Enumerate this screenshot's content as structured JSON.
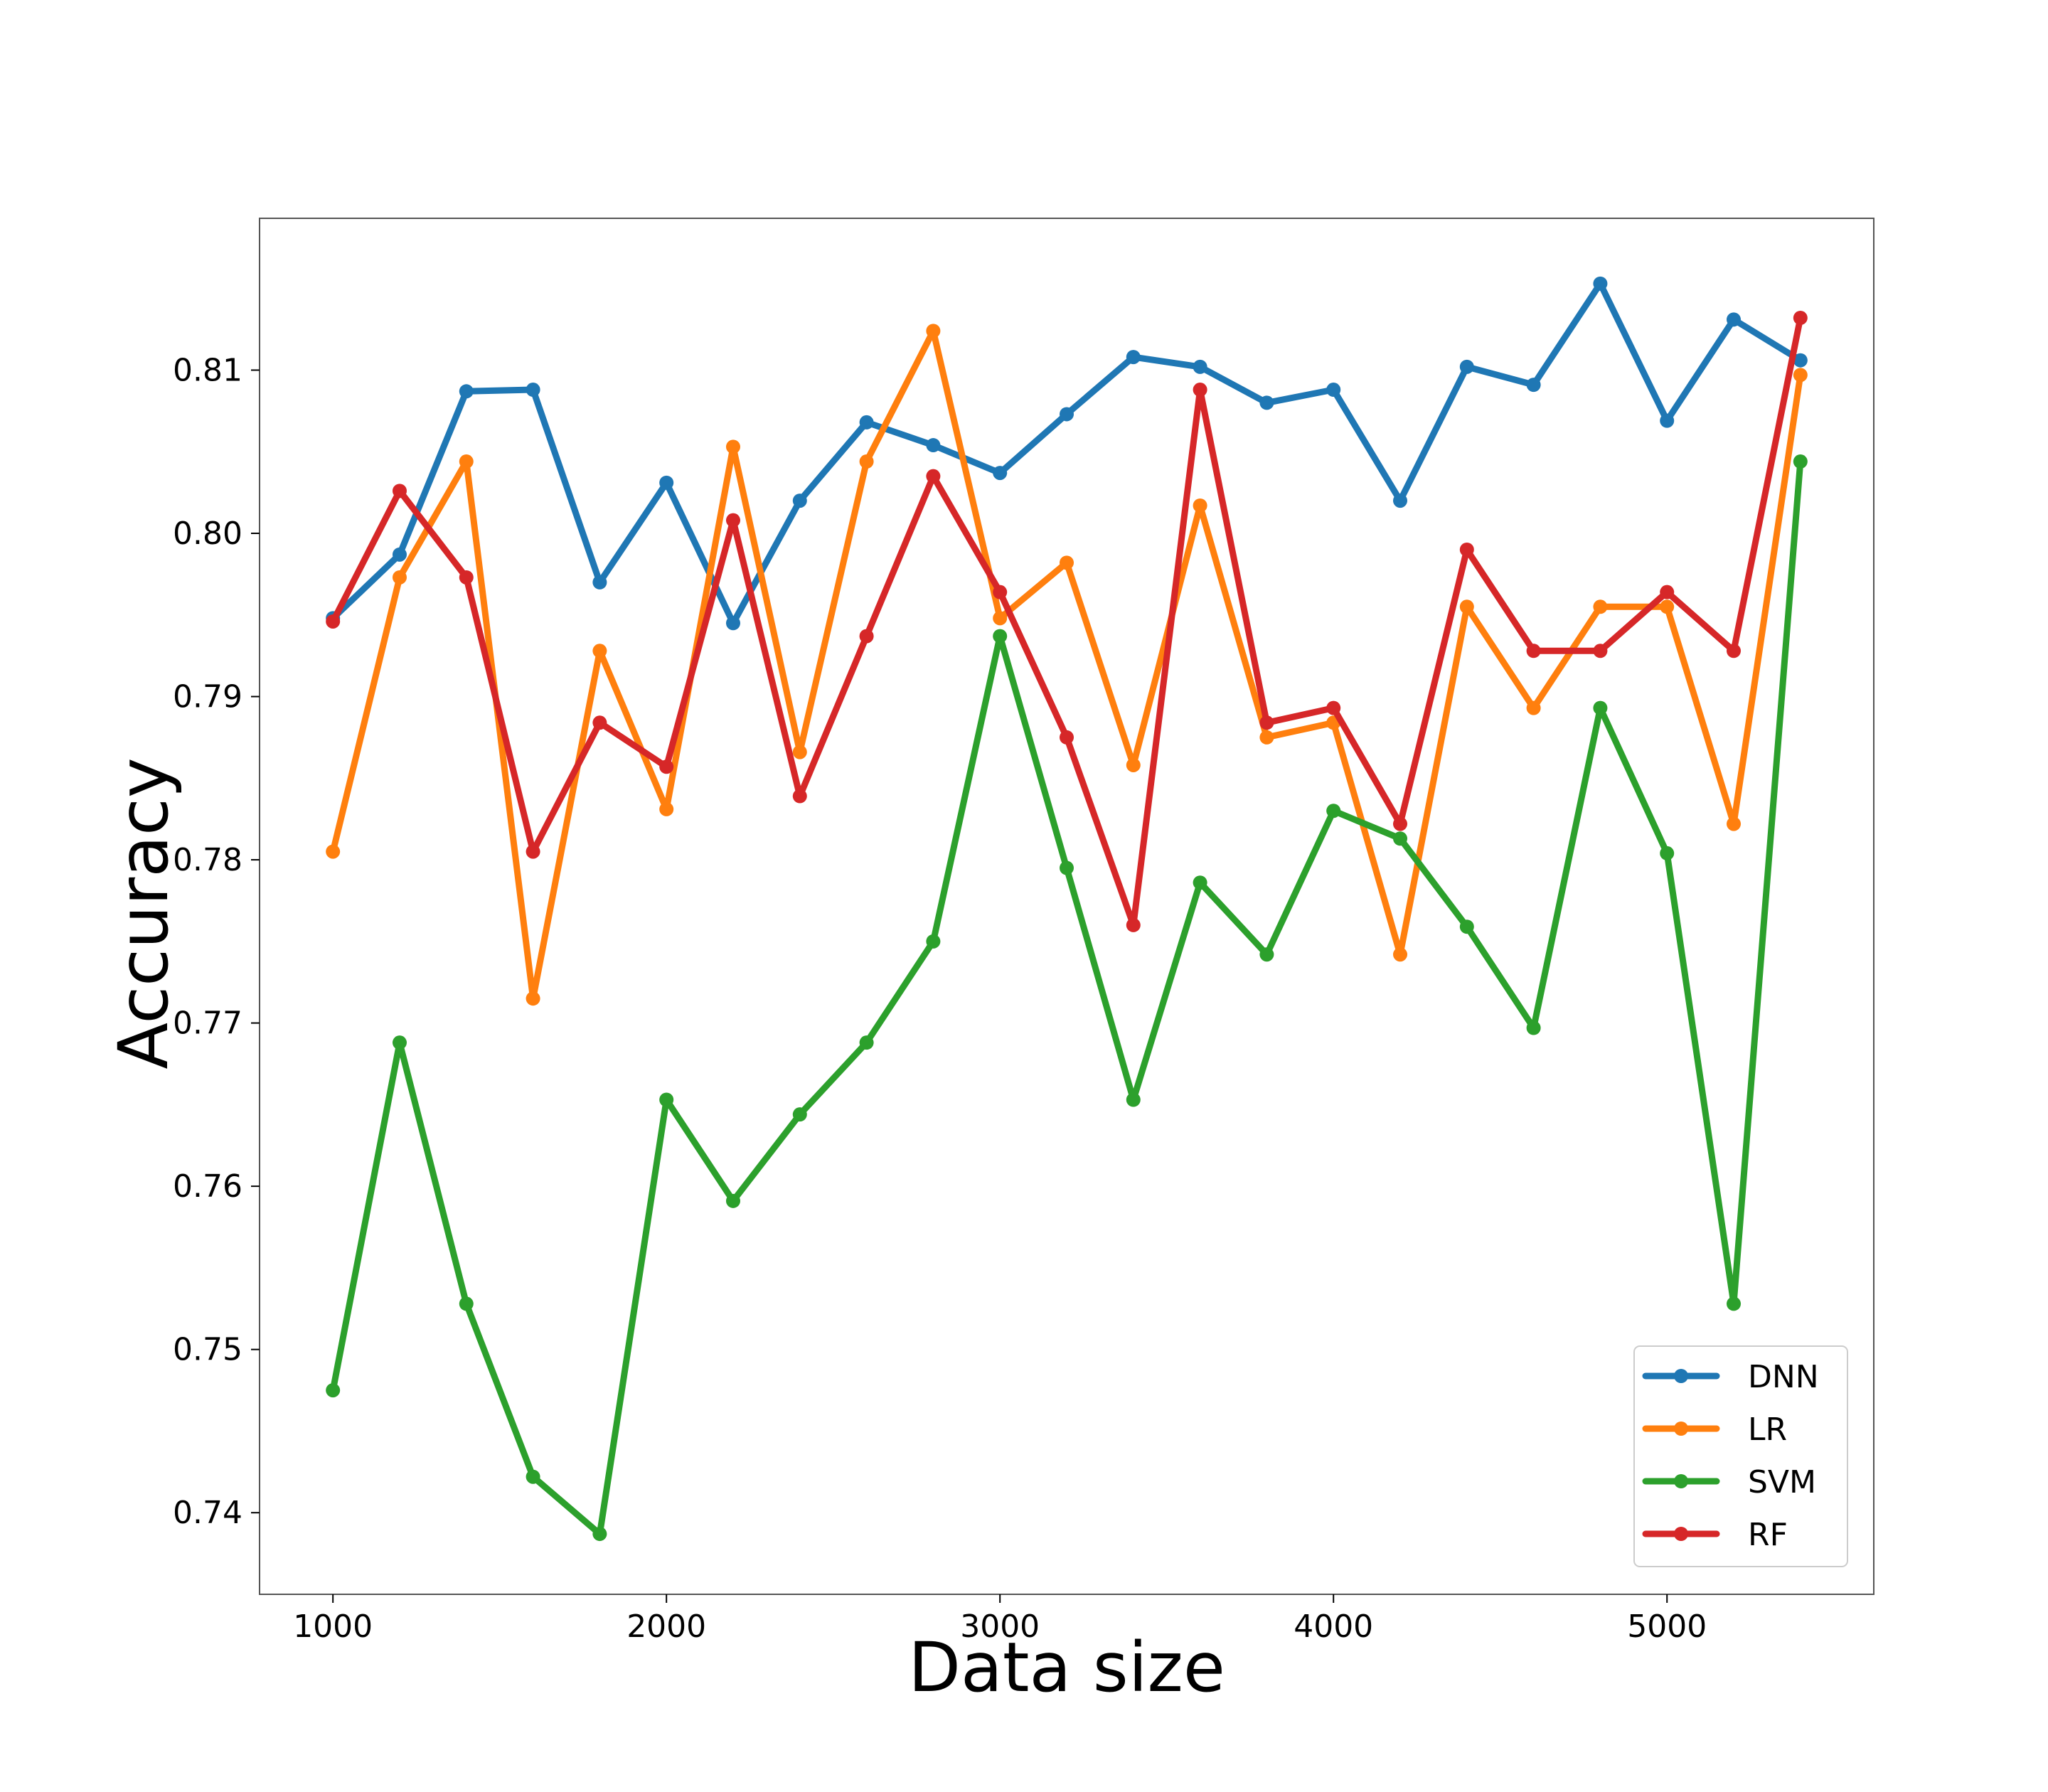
{
  "chart_data": {
    "type": "line",
    "title": "",
    "xlabel": "Data size",
    "ylabel": "Accuracy",
    "xlim": [
      780,
      5620
    ],
    "ylim": [
      0.735,
      0.8193
    ],
    "xticks": [
      1000,
      2000,
      3000,
      4000,
      5000
    ],
    "xtick_labels": [
      "1000",
      "2000",
      "3000",
      "4000",
      "5000"
    ],
    "yticks": [
      0.74,
      0.75,
      0.76,
      0.77,
      0.78,
      0.79,
      0.8,
      0.81
    ],
    "ytick_labels": [
      "0.74",
      "0.75",
      "0.76",
      "0.77",
      "0.78",
      "0.79",
      "0.80",
      "0.81"
    ],
    "grid": false,
    "legend_position": "bottom-right",
    "x": [
      1000,
      1200,
      1400,
      1600,
      1800,
      2000,
      2200,
      2400,
      2600,
      2800,
      3000,
      3200,
      3400,
      3600,
      3800,
      4000,
      4200,
      4400,
      4600,
      4800,
      5000,
      5200,
      5400
    ],
    "series": [
      {
        "name": "DNN",
        "color": "#1f77b4",
        "values": [
          0.7948,
          0.7987,
          0.8087,
          0.8088,
          0.797,
          0.8031,
          0.7945,
          0.802,
          0.8068,
          0.8054,
          0.8037,
          0.8073,
          0.8108,
          0.8102,
          0.808,
          0.8088,
          0.802,
          0.8102,
          0.8091,
          0.8153,
          0.8069,
          0.8131,
          0.8106
        ]
      },
      {
        "name": "LR",
        "color": "#ff7f0e",
        "values": [
          0.7805,
          0.7973,
          0.8044,
          0.7715,
          0.7928,
          0.7831,
          0.8053,
          0.7866,
          0.8044,
          0.8124,
          0.7948,
          0.7982,
          0.7858,
          0.8017,
          0.7875,
          0.7884,
          0.7742,
          0.7955,
          0.7893,
          0.7955,
          0.7955,
          0.7822,
          0.8097
        ]
      },
      {
        "name": "SVM",
        "color": "#2ca02c",
        "values": [
          0.7475,
          0.7688,
          0.7528,
          0.7422,
          0.7387,
          0.7653,
          0.7591,
          0.7644,
          0.7688,
          0.775,
          0.7937,
          0.7795,
          0.7653,
          0.7786,
          0.7742,
          0.783,
          0.7813,
          0.7759,
          0.7697,
          0.7893,
          0.7804,
          0.7528,
          0.8044
        ]
      },
      {
        "name": "RF",
        "color": "#d62728",
        "values": [
          0.7946,
          0.8026,
          0.7973,
          0.7805,
          0.7884,
          0.7857,
          0.8008,
          0.7839,
          0.7937,
          0.8035,
          0.7964,
          0.7875,
          0.776,
          0.8088,
          0.7884,
          0.7893,
          0.7822,
          0.799,
          0.7928,
          0.7928,
          0.7964,
          0.7928,
          0.8132
        ]
      }
    ]
  }
}
